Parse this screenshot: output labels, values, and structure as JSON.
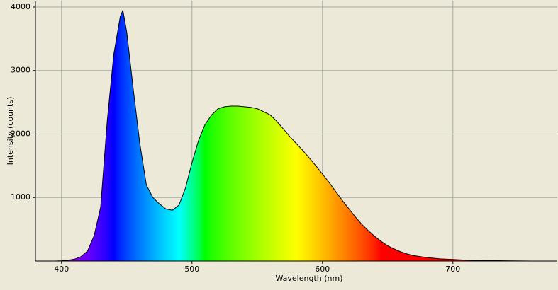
{
  "chart_data": {
    "type": "area",
    "x_label": "Wavelength (nm)",
    "y_label": "Intensity (counts)",
    "x": [
      395,
      400,
      405,
      410,
      415,
      420,
      425,
      430,
      435,
      440,
      445,
      447,
      450,
      455,
      460,
      465,
      470,
      475,
      480,
      485,
      490,
      495,
      500,
      505,
      510,
      515,
      520,
      525,
      530,
      535,
      540,
      545,
      550,
      555,
      560,
      565,
      570,
      575,
      580,
      585,
      590,
      595,
      600,
      605,
      610,
      615,
      620,
      625,
      630,
      635,
      640,
      645,
      650,
      655,
      660,
      665,
      670,
      680,
      690,
      700,
      710,
      720,
      740,
      760
    ],
    "values": [
      0,
      5,
      12,
      30,
      70,
      160,
      400,
      850,
      2200,
      3250,
      3850,
      3950,
      3600,
      2700,
      1850,
      1200,
      1000,
      900,
      820,
      800,
      880,
      1150,
      1550,
      1900,
      2150,
      2300,
      2400,
      2430,
      2440,
      2440,
      2430,
      2420,
      2400,
      2350,
      2300,
      2200,
      2080,
      1960,
      1850,
      1740,
      1620,
      1500,
      1370,
      1240,
      1100,
      960,
      830,
      700,
      580,
      480,
      390,
      310,
      240,
      190,
      145,
      110,
      85,
      55,
      35,
      25,
      15,
      10,
      5,
      0
    ],
    "xlim": [
      380,
      780
    ],
    "ylim": [
      0,
      4100
    ],
    "xticks": [
      400,
      500,
      600,
      700
    ],
    "yticks": [
      1000,
      2000,
      3000,
      4000
    ],
    "grid": true,
    "line_color": "#000000"
  }
}
